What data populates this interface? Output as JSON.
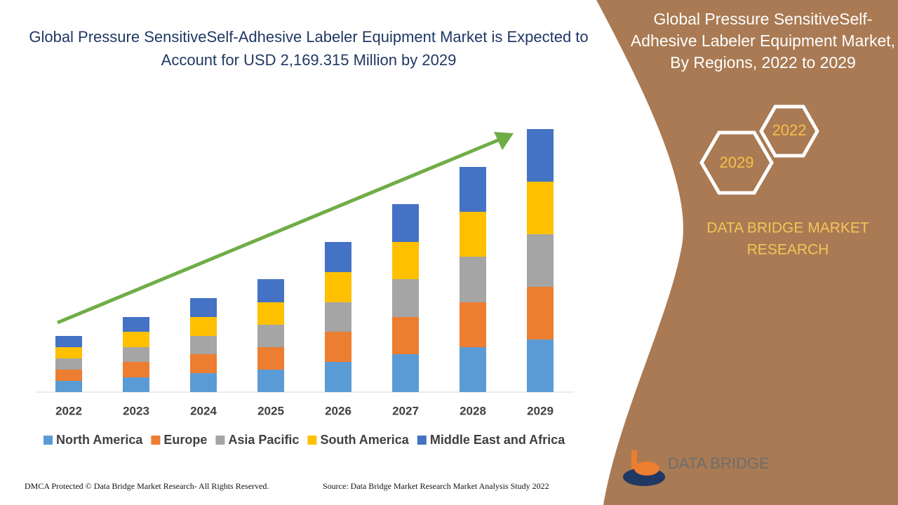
{
  "chart_data": {
    "type": "stacked_bar",
    "title": "Global Pressure SensitiveSelf-Adhesive Labeler Equipment Market is Expected to Account for USD 2,169.315 Million by 2029",
    "categories": [
      "2022",
      "2023",
      "2024",
      "2025",
      "2026",
      "2027",
      "2028",
      "2029"
    ],
    "series": [
      {
        "name": "North America",
        "color": "#5b9bd5",
        "values": [
          16,
          21,
          27,
          32,
          43,
          54,
          64,
          75
        ]
      },
      {
        "name": "Europe",
        "color": "#ed7d31",
        "values": [
          16,
          22,
          27,
          32,
          43,
          53,
          64,
          75
        ]
      },
      {
        "name": "Asia Pacific",
        "color": "#a5a5a5",
        "values": [
          16,
          21,
          26,
          32,
          42,
          54,
          65,
          75
        ]
      },
      {
        "name": "South America",
        "color": "#ffc000",
        "values": [
          16,
          22,
          27,
          32,
          43,
          53,
          64,
          75
        ]
      },
      {
        "name": "Middle East and Africa",
        "color": "#4472c4",
        "values": [
          16,
          21,
          27,
          33,
          43,
          54,
          64,
          75
        ]
      }
    ]
  },
  "side_panel": {
    "title": "Global Pressure SensitiveSelf-Adhesive Labeler Equipment Market, By Regions, 2022 to 2029",
    "hex_start": "2022",
    "hex_end": "2029",
    "brand_line1": "DATA BRIDGE MARKET",
    "brand_line2": "RESEARCH"
  },
  "logo": {
    "name": "DATA BRIDGE"
  },
  "footer": {
    "left": "DMCA Protected © Data Bridge Market Research- All Rights Reserved.",
    "right": "Source: Data Bridge Market Research Market Analysis Study 2022"
  }
}
